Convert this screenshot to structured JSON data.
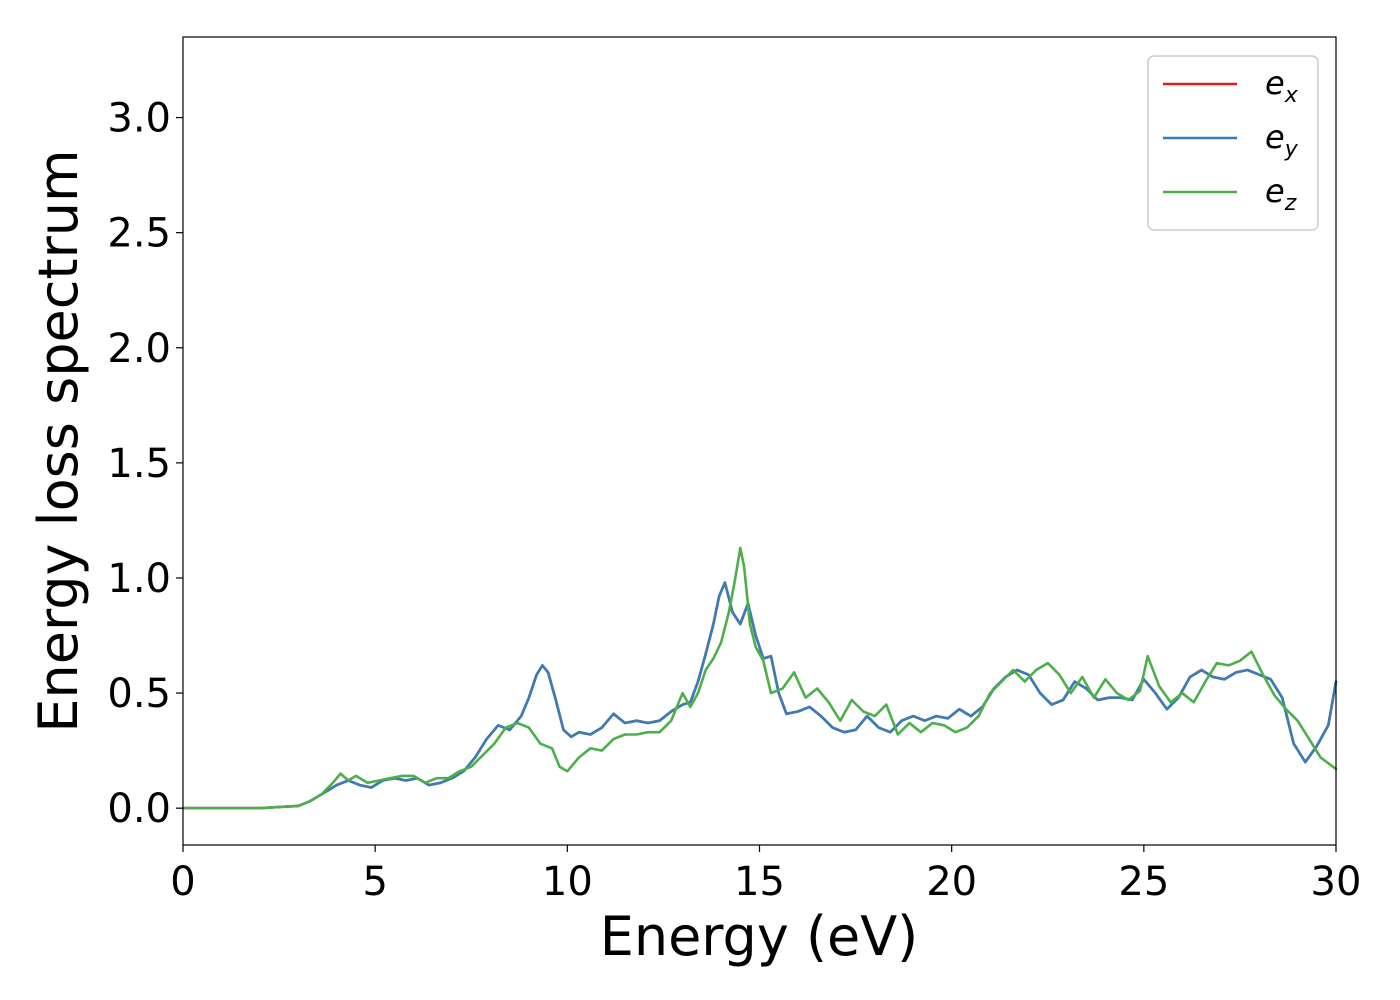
{
  "chart_data": {
    "type": "line",
    "xlabel": "Energy (eV)",
    "ylabel": "Energy loss spectrum",
    "xlim": [
      0,
      30
    ],
    "ylim": [
      -0.16,
      3.35
    ],
    "xticks": [
      0,
      5,
      10,
      15,
      20,
      25,
      30
    ],
    "xtick_labels": [
      "0",
      "5",
      "10",
      "15",
      "20",
      "25",
      "30"
    ],
    "yticks": [
      0.0,
      0.5,
      1.0,
      1.5,
      2.0,
      2.5,
      3.0
    ],
    "ytick_labels": [
      "0.0",
      "0.5",
      "1.0",
      "1.5",
      "2.0",
      "2.5",
      "3.0"
    ],
    "grid": false,
    "legend_position": "top-right",
    "series": [
      {
        "name": "e",
        "subscript": "x",
        "color": "#e41a1c",
        "x": [
          0,
          1,
          2,
          2.5,
          3,
          3.3,
          3.6,
          4.0,
          4.3,
          4.6,
          4.9,
          5.2,
          5.5,
          5.8,
          6.1,
          6.4,
          6.7,
          7.0,
          7.3,
          7.6,
          7.9,
          8.2,
          8.5,
          8.8,
          9.0,
          9.2,
          9.35,
          9.5,
          9.7,
          9.9,
          10.1,
          10.3,
          10.6,
          10.9,
          11.2,
          11.5,
          11.8,
          12.1,
          12.4,
          12.7,
          13.0,
          13.2,
          13.4,
          13.6,
          13.8,
          13.95,
          14.1,
          14.3,
          14.5,
          14.7,
          14.9,
          15.1,
          15.3,
          15.5,
          15.7,
          16.0,
          16.3,
          16.6,
          16.9,
          17.2,
          17.5,
          17.8,
          18.1,
          18.4,
          18.7,
          19.0,
          19.3,
          19.6,
          19.9,
          20.2,
          20.5,
          20.8,
          21.1,
          21.4,
          21.7,
          22.0,
          22.3,
          22.6,
          22.9,
          23.2,
          23.5,
          23.8,
          24.1,
          24.4,
          24.7,
          25.0,
          25.3,
          25.6,
          25.9,
          26.2,
          26.5,
          26.8,
          27.1,
          27.4,
          27.7,
          28.0,
          28.3,
          28.6,
          28.9,
          29.2,
          29.5,
          29.8,
          30.0
        ],
        "y": [
          0.0,
          0.0,
          0.0,
          0.005,
          0.01,
          0.03,
          0.06,
          0.1,
          0.12,
          0.1,
          0.09,
          0.12,
          0.13,
          0.12,
          0.13,
          0.1,
          0.11,
          0.13,
          0.16,
          0.22,
          0.3,
          0.36,
          0.34,
          0.4,
          0.48,
          0.58,
          0.62,
          0.59,
          0.47,
          0.34,
          0.31,
          0.33,
          0.32,
          0.35,
          0.41,
          0.37,
          0.38,
          0.37,
          0.38,
          0.42,
          0.45,
          0.46,
          0.55,
          0.67,
          0.8,
          0.92,
          0.98,
          0.85,
          0.8,
          0.89,
          0.75,
          0.65,
          0.66,
          0.5,
          0.41,
          0.42,
          0.44,
          0.4,
          0.35,
          0.33,
          0.34,
          0.4,
          0.35,
          0.33,
          0.38,
          0.4,
          0.38,
          0.4,
          0.39,
          0.43,
          0.4,
          0.44,
          0.52,
          0.57,
          0.6,
          0.58,
          0.5,
          0.45,
          0.47,
          0.55,
          0.52,
          0.47,
          0.48,
          0.48,
          0.47,
          0.56,
          0.5,
          0.43,
          0.48,
          0.57,
          0.6,
          0.57,
          0.56,
          0.59,
          0.6,
          0.58,
          0.56,
          0.48,
          0.28,
          0.2,
          0.27,
          0.36,
          0.55
        ]
      },
      {
        "name": "e",
        "subscript": "y",
        "color": "#377eb8",
        "x": [
          0,
          1,
          2,
          2.5,
          3,
          3.3,
          3.6,
          4.0,
          4.3,
          4.6,
          4.9,
          5.2,
          5.5,
          5.8,
          6.1,
          6.4,
          6.7,
          7.0,
          7.3,
          7.6,
          7.9,
          8.2,
          8.5,
          8.8,
          9.0,
          9.2,
          9.35,
          9.5,
          9.7,
          9.9,
          10.1,
          10.3,
          10.6,
          10.9,
          11.2,
          11.5,
          11.8,
          12.1,
          12.4,
          12.7,
          13.0,
          13.2,
          13.4,
          13.6,
          13.8,
          13.95,
          14.1,
          14.3,
          14.5,
          14.7,
          14.9,
          15.1,
          15.3,
          15.5,
          15.7,
          16.0,
          16.3,
          16.6,
          16.9,
          17.2,
          17.5,
          17.8,
          18.1,
          18.4,
          18.7,
          19.0,
          19.3,
          19.6,
          19.9,
          20.2,
          20.5,
          20.8,
          21.1,
          21.4,
          21.7,
          22.0,
          22.3,
          22.6,
          22.9,
          23.2,
          23.5,
          23.8,
          24.1,
          24.4,
          24.7,
          25.0,
          25.3,
          25.6,
          25.9,
          26.2,
          26.5,
          26.8,
          27.1,
          27.4,
          27.7,
          28.0,
          28.3,
          28.6,
          28.9,
          29.2,
          29.5,
          29.8,
          30.0
        ],
        "y": [
          0.0,
          0.0,
          0.0,
          0.005,
          0.01,
          0.03,
          0.06,
          0.1,
          0.12,
          0.1,
          0.09,
          0.12,
          0.13,
          0.12,
          0.13,
          0.1,
          0.11,
          0.13,
          0.16,
          0.22,
          0.3,
          0.36,
          0.34,
          0.4,
          0.48,
          0.58,
          0.62,
          0.59,
          0.47,
          0.34,
          0.31,
          0.33,
          0.32,
          0.35,
          0.41,
          0.37,
          0.38,
          0.37,
          0.38,
          0.42,
          0.45,
          0.46,
          0.55,
          0.67,
          0.8,
          0.92,
          0.98,
          0.85,
          0.8,
          0.89,
          0.75,
          0.65,
          0.66,
          0.5,
          0.41,
          0.42,
          0.44,
          0.4,
          0.35,
          0.33,
          0.34,
          0.4,
          0.35,
          0.33,
          0.38,
          0.4,
          0.38,
          0.4,
          0.39,
          0.43,
          0.4,
          0.44,
          0.52,
          0.57,
          0.6,
          0.58,
          0.5,
          0.45,
          0.47,
          0.55,
          0.52,
          0.47,
          0.48,
          0.48,
          0.47,
          0.56,
          0.5,
          0.43,
          0.48,
          0.57,
          0.6,
          0.57,
          0.56,
          0.59,
          0.6,
          0.58,
          0.56,
          0.48,
          0.28,
          0.2,
          0.27,
          0.36,
          0.55
        ]
      },
      {
        "name": "e",
        "subscript": "z",
        "color": "#4daf4a",
        "x": [
          0,
          1,
          2,
          2.5,
          3,
          3.3,
          3.6,
          3.9,
          4.1,
          4.3,
          4.5,
          4.8,
          5.1,
          5.4,
          5.7,
          6.0,
          6.3,
          6.6,
          6.9,
          7.2,
          7.5,
          7.8,
          8.1,
          8.4,
          8.7,
          9.0,
          9.3,
          9.6,
          9.8,
          10.0,
          10.3,
          10.6,
          10.9,
          11.2,
          11.5,
          11.8,
          12.1,
          12.4,
          12.7,
          13.0,
          13.2,
          13.4,
          13.6,
          13.8,
          14.0,
          14.2,
          14.35,
          14.5,
          14.6,
          14.75,
          14.9,
          15.1,
          15.3,
          15.6,
          15.9,
          16.2,
          16.5,
          16.8,
          17.1,
          17.4,
          17.7,
          18.0,
          18.3,
          18.6,
          18.9,
          19.2,
          19.5,
          19.8,
          20.1,
          20.4,
          20.7,
          21.0,
          21.3,
          21.6,
          21.9,
          22.2,
          22.5,
          22.8,
          23.1,
          23.4,
          23.7,
          24.0,
          24.3,
          24.6,
          24.9,
          25.1,
          25.4,
          25.7,
          26.0,
          26.3,
          26.6,
          26.9,
          27.2,
          27.5,
          27.8,
          28.1,
          28.4,
          28.7,
          29.0,
          29.3,
          29.6,
          30.0
        ],
        "y": [
          0.0,
          0.0,
          0.0,
          0.005,
          0.01,
          0.03,
          0.06,
          0.11,
          0.15,
          0.12,
          0.14,
          0.11,
          0.12,
          0.13,
          0.14,
          0.14,
          0.11,
          0.13,
          0.13,
          0.16,
          0.18,
          0.23,
          0.28,
          0.35,
          0.37,
          0.35,
          0.28,
          0.26,
          0.18,
          0.16,
          0.22,
          0.26,
          0.25,
          0.3,
          0.32,
          0.32,
          0.33,
          0.33,
          0.38,
          0.5,
          0.44,
          0.5,
          0.6,
          0.65,
          0.72,
          0.85,
          0.98,
          1.13,
          1.05,
          0.8,
          0.7,
          0.64,
          0.5,
          0.52,
          0.59,
          0.48,
          0.52,
          0.46,
          0.38,
          0.47,
          0.42,
          0.4,
          0.45,
          0.32,
          0.37,
          0.33,
          0.37,
          0.36,
          0.33,
          0.35,
          0.4,
          0.5,
          0.55,
          0.6,
          0.55,
          0.6,
          0.63,
          0.58,
          0.5,
          0.57,
          0.48,
          0.56,
          0.5,
          0.47,
          0.51,
          0.66,
          0.53,
          0.46,
          0.5,
          0.46,
          0.55,
          0.63,
          0.62,
          0.64,
          0.68,
          0.58,
          0.49,
          0.43,
          0.38,
          0.3,
          0.22,
          0.17
        ]
      }
    ]
  }
}
